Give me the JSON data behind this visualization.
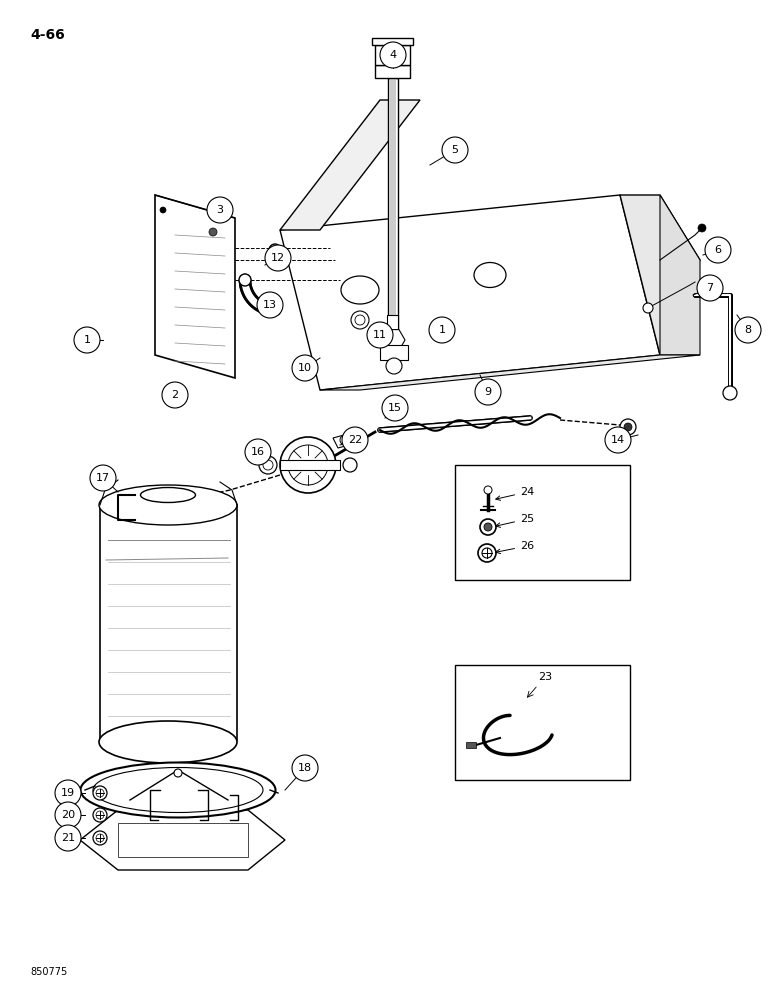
{
  "page_label": "4-66",
  "footer_text": "850775",
  "bg_color": "#ffffff",
  "lc": "#000000",
  "figsize": [
    7.8,
    10.0
  ],
  "dpi": 100
}
